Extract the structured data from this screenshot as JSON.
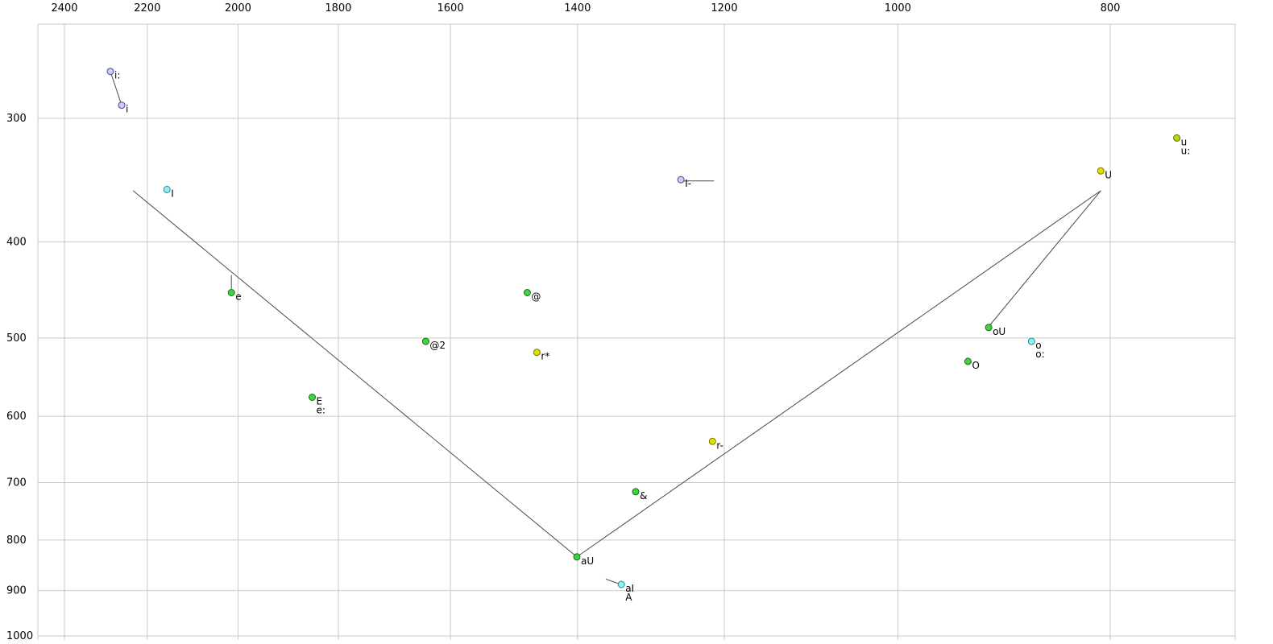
{
  "chart_data": {
    "type": "scatter",
    "title": "",
    "description": "Vowel formant plot: F2 (Hz) on reversed log x-axis, F1 (Hz) on log y-axis, phoneme points with diphthong trajectory lines",
    "x_axis": {
      "ticks": [
        2400,
        2200,
        2000,
        1800,
        1600,
        1400,
        1200,
        1000,
        800
      ],
      "scale": "log",
      "reversed": true
    },
    "y_axis": {
      "ticks": [
        300,
        400,
        500,
        600,
        700,
        800,
        900,
        1000
      ],
      "scale": "log"
    },
    "grid": true,
    "points": [
      {
        "labels": [
          "i:"
        ],
        "f2": 2287,
        "f1": 269,
        "color": "lavender"
      },
      {
        "labels": [
          "i"
        ],
        "f2": 2260,
        "f1": 291,
        "color": "lavender"
      },
      {
        "labels": [
          "I"
        ],
        "f2": 2155,
        "f1": 354,
        "color": "cyan"
      },
      {
        "labels": [
          "e"
        ],
        "f2": 2014,
        "f1": 450,
        "color": "green"
      },
      {
        "labels": [
          "E",
          "e:"
        ],
        "f2": 1850,
        "f1": 574,
        "color": "green"
      },
      {
        "labels": [
          "@2"
        ],
        "f2": 1642,
        "f1": 504,
        "color": "green"
      },
      {
        "labels": [
          "@"
        ],
        "f2": 1476,
        "f1": 450,
        "color": "green"
      },
      {
        "labels": [
          "r*"
        ],
        "f2": 1461,
        "f1": 517,
        "color": "yellow"
      },
      {
        "labels": [
          "aU"
        ],
        "f2": 1401,
        "f1": 832,
        "color": "green"
      },
      {
        "labels": [
          "aI",
          "A"
        ],
        "f2": 1337,
        "f1": 887,
        "color": "cyan"
      },
      {
        "labels": [
          "&"
        ],
        "f2": 1317,
        "f1": 715,
        "color": "green"
      },
      {
        "labels": [
          "I-"
        ],
        "f2": 1256,
        "f1": 346,
        "color": "lavender"
      },
      {
        "labels": [
          "r-"
        ],
        "f2": 1215,
        "f1": 636,
        "color": "yellow"
      },
      {
        "labels": [
          "O"
        ],
        "f2": 929,
        "f1": 528,
        "color": "green"
      },
      {
        "labels": [
          "oU"
        ],
        "f2": 909,
        "f1": 488,
        "color": "green"
      },
      {
        "labels": [
          "o",
          "o:"
        ],
        "f2": 869,
        "f1": 504,
        "color": "cyan"
      },
      {
        "labels": [
          "U"
        ],
        "f2": 808,
        "f1": 339,
        "color": "yellow"
      },
      {
        "labels": [
          "u",
          "u:"
        ],
        "f2": 746,
        "f1": 314,
        "color": "yellowgreen"
      }
    ],
    "segments": [
      {
        "name": "i-long-to-i",
        "from": [
          2287,
          269
        ],
        "to": [
          2260,
          291
        ]
      },
      {
        "name": "e-tick",
        "from": [
          2014,
          432
        ],
        "to": [
          2014,
          446
        ]
      },
      {
        "name": "I-bar",
        "from": [
          1256,
          347
        ],
        "to": [
          1213,
          347
        ]
      },
      {
        "name": "front-diagonal",
        "from": [
          2233,
          355
        ],
        "to": [
          1401,
          832
        ]
      },
      {
        "name": "back-diagonal",
        "from": [
          1401,
          832
        ],
        "to": [
          808,
          355
        ]
      },
      {
        "name": "U-to-oU",
        "from": [
          808,
          355
        ],
        "to": [
          909,
          487
        ]
      },
      {
        "name": "aI-tail",
        "from": [
          1359,
          876
        ],
        "to": [
          1338,
          887
        ]
      }
    ],
    "colors": {
      "green": {
        "fill": "#3fd43f",
        "stroke": "#1a6b1a"
      },
      "yellow": {
        "fill": "#e0e000",
        "stroke": "#7a7a00"
      },
      "cyan": {
        "fill": "#8ff0f0",
        "stroke": "#2a8a8a"
      },
      "lavender": {
        "fill": "#ccccf5",
        "stroke": "#4747a8"
      },
      "yellowgreen": {
        "fill": "#bada00",
        "stroke": "#5f7000"
      },
      "grid": "#c9c9c9",
      "line": "#4a4a4a",
      "text": "#000000",
      "background": "#ffffff"
    }
  }
}
